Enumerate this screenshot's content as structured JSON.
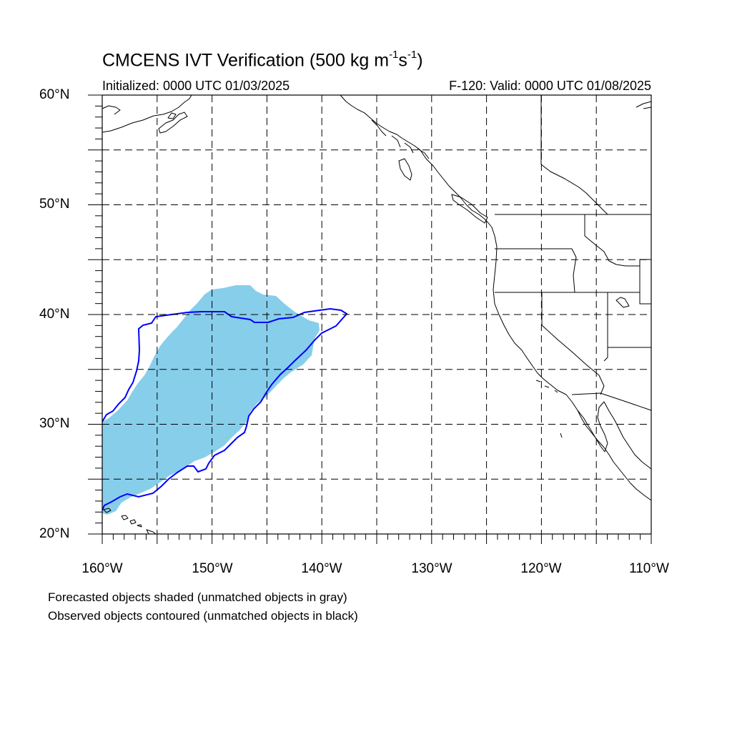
{
  "title": {
    "prefix": "CMCENS IVT Verification (500 kg m",
    "exp1": "-1",
    "mid": "s",
    "exp2": "-1",
    "suffix": ")"
  },
  "subtitle_left": "Initialized: 0000 UTC 01/03/2025",
  "subtitle_right": "F-120: Valid: 0000 UTC 01/08/2025",
  "lat_labels": [
    "60°N",
    "50°N",
    "40°N",
    "30°N",
    "20°N"
  ],
  "lon_labels": [
    "160°W",
    "150°W",
    "140°W",
    "130°W",
    "120°W",
    "110°W"
  ],
  "notes": [
    "Forecasted objects shaded (unmatched objects in gray)",
    "Observed objects contoured (unmatched objects in black)"
  ],
  "colors": {
    "forecast_fill": "#87ceeb",
    "observed_contour": "#0000ff",
    "coast": "#000000",
    "grid": "#000000"
  },
  "map_extent": {
    "lon": [
      -160,
      -110
    ],
    "lat": [
      20,
      60
    ]
  }
}
